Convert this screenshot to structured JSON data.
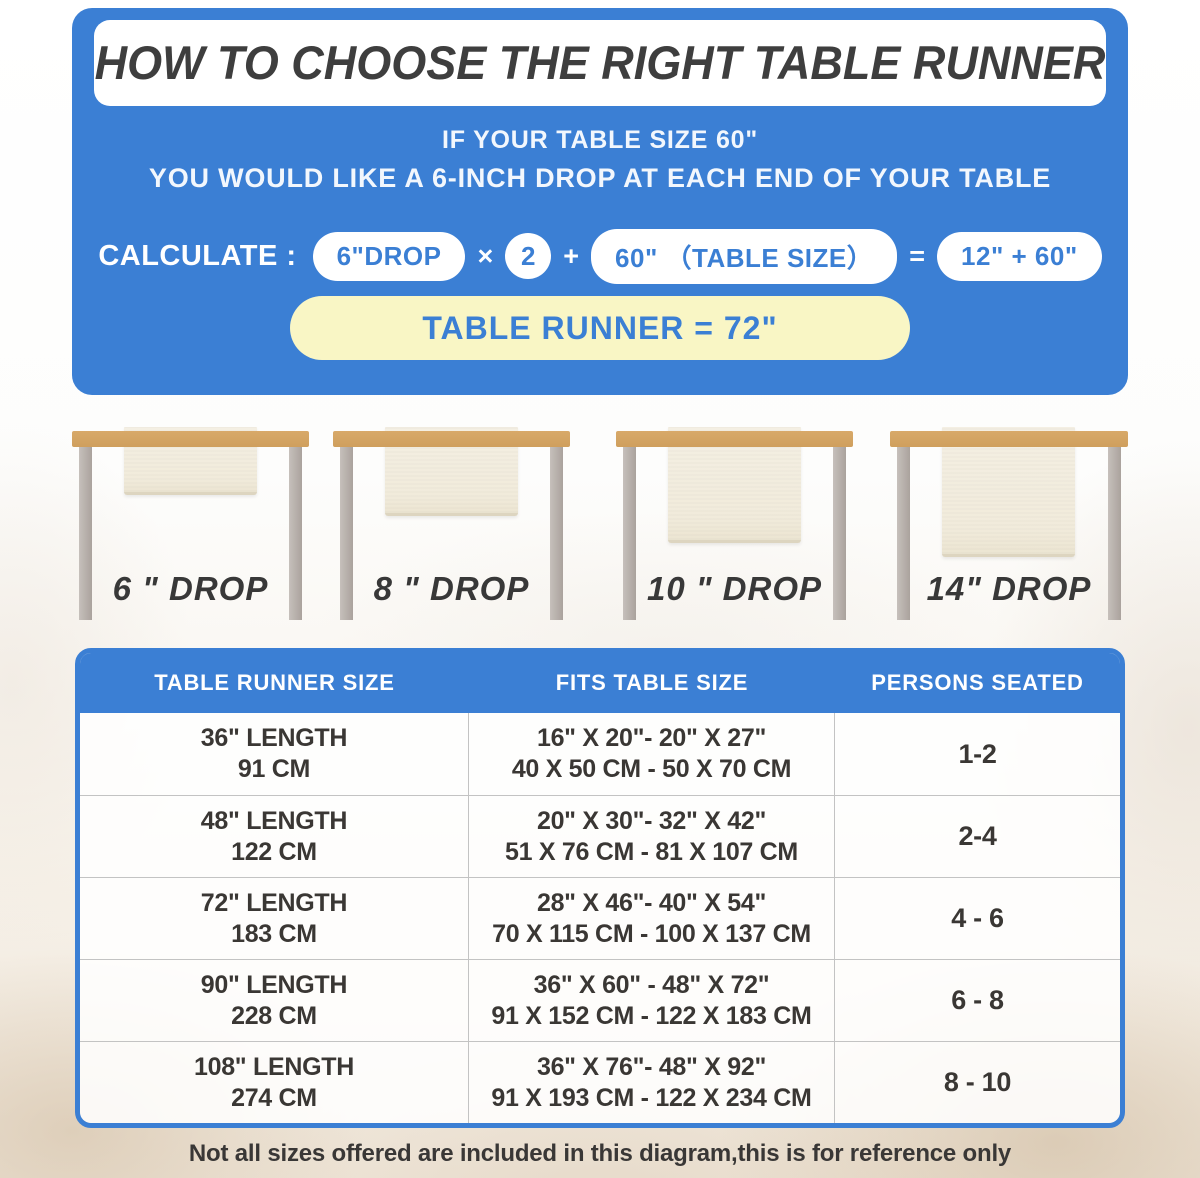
{
  "banner": {
    "title": "HOW TO CHOOSE THE RIGHT TABLE RUNNER",
    "subtitle_line1": "IF YOUR TABLE SIZE 60\"",
    "subtitle_line2": "YOU WOULD LIKE A 6-INCH DROP AT EACH END OF YOUR TABLE",
    "calc": {
      "label": "CALCULATE :",
      "drop_pill": "6\"DROP",
      "times": "×",
      "multiplier": "2",
      "plus": "+",
      "table_size_pill": "60\" （TABLE SIZE）",
      "equals": "=",
      "sum_pill": "12\" + 60\"",
      "result": "TABLE RUNNER = 72\""
    }
  },
  "figures": [
    {
      "label": "6 \" DROP"
    },
    {
      "label": "8 \" DROP"
    },
    {
      "label": "10 \" DROP"
    },
    {
      "label": "14\" DROP"
    }
  ],
  "size_table": {
    "headers": [
      "TABLE RUNNER SIZE",
      "FITS TABLE SIZE",
      "PERSONS SEATED"
    ],
    "rows": [
      {
        "runner_in": "36\" LENGTH",
        "runner_cm": "91 CM",
        "fits_in": "16\" X 20\"- 20\" X 27\"",
        "fits_cm": "40 X 50 CM - 50 X 70 CM",
        "persons": "1-2"
      },
      {
        "runner_in": "48\" LENGTH",
        "runner_cm": "122 CM",
        "fits_in": "20\" X 30\"- 32\" X 42\"",
        "fits_cm": "51 X 76 CM - 81 X 107 CM",
        "persons": "2-4"
      },
      {
        "runner_in": "72\" LENGTH",
        "runner_cm": "183 CM",
        "fits_in": "28\" X 46\"- 40\" X 54\"",
        "fits_cm": "70 X 115 CM - 100 X 137 CM",
        "persons": "4 - 6"
      },
      {
        "runner_in": "90\" LENGTH",
        "runner_cm": "228 CM",
        "fits_in": "36\" X 60\" - 48\" X 72\"",
        "fits_cm": "91 X 152 CM - 122 X 183 CM",
        "persons": "6 - 8"
      },
      {
        "runner_in": "108\" LENGTH",
        "runner_cm": "274 CM",
        "fits_in": "36\" X 76\"- 48\" X 92\"",
        "fits_cm": "91 X 193 CM - 122 X 234 CM",
        "persons": "8 - 10"
      }
    ]
  },
  "footer_note": "Not all sizes offered are included in this diagram,this is for reference only",
  "colors": {
    "accent_blue": "#3b7fd4",
    "result_yellow": "#f9f6c5",
    "title_text": "#3e3e3e",
    "wood_tan": "#d3a463",
    "leg_gray": "#b8b1ac",
    "runner_cream": "#f1ebdb"
  }
}
